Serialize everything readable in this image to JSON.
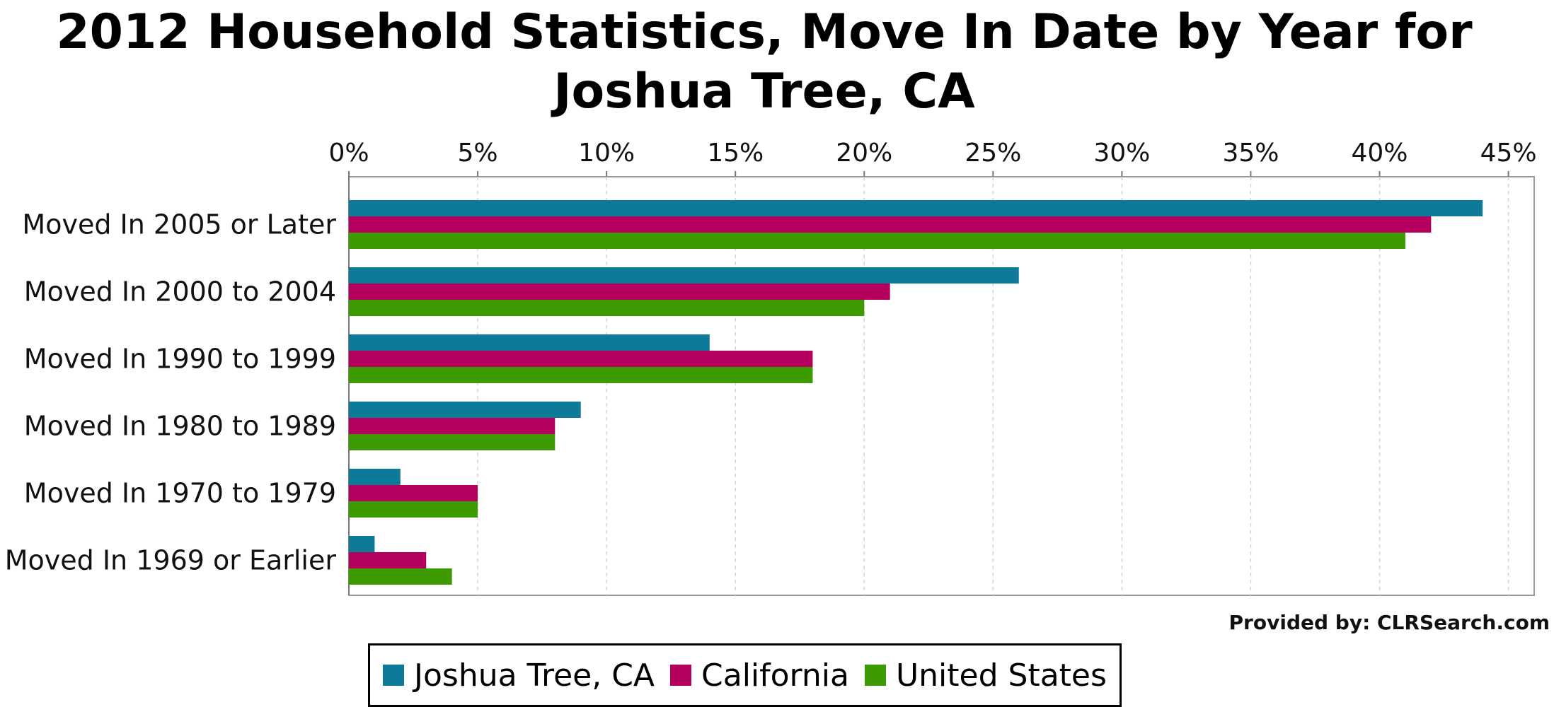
{
  "chart_data": {
    "type": "bar",
    "orientation": "horizontal",
    "title": "2012 Household Statistics, Move In Date by Year for Joshua Tree, CA",
    "categories": [
      "Moved In 2005 or Later",
      "Moved In 2000 to 2004",
      "Moved In 1990 to 1999",
      "Moved In 1980 to 1989",
      "Moved In 1970 to 1979",
      "Moved In 1969 or Earlier"
    ],
    "series": [
      {
        "name": "Joshua Tree, CA",
        "color": "#0e7a99",
        "values": [
          44,
          26,
          14,
          9,
          2,
          1
        ]
      },
      {
        "name": "California",
        "color": "#b5005e",
        "values": [
          42,
          21,
          18,
          8,
          5,
          3
        ]
      },
      {
        "name": "United States",
        "color": "#3d9a00",
        "values": [
          41,
          20,
          18,
          8,
          5,
          4
        ]
      }
    ],
    "xlim": [
      0,
      46
    ],
    "xticks": [
      0,
      5,
      10,
      15,
      20,
      25,
      30,
      35,
      40,
      45
    ],
    "tick_labels": [
      "0%",
      "5%",
      "10%",
      "15%",
      "20%",
      "25%",
      "30%",
      "35%",
      "40%",
      "45%"
    ],
    "xlabel": "",
    "ylabel": "",
    "grid": true,
    "legend_position": "bottom",
    "source_note": "Provided by: CLRSearch.com"
  }
}
